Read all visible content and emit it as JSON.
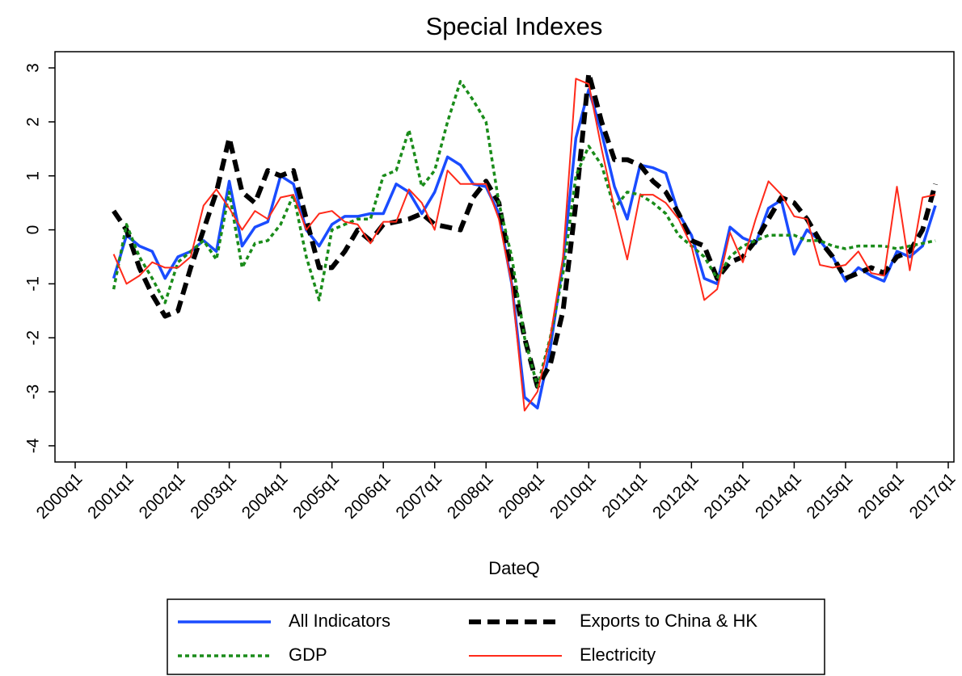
{
  "chart_data": {
    "type": "line",
    "title": "Special Indexes",
    "x_label": "DateQ",
    "categories": [
      "2000q4",
      "2001q1",
      "2001q2",
      "2001q3",
      "2001q4",
      "2002q1",
      "2002q2",
      "2002q3",
      "2002q4",
      "2003q1",
      "2003q2",
      "2003q3",
      "2003q4",
      "2004q1",
      "2004q2",
      "2004q3",
      "2004q4",
      "2005q1",
      "2005q2",
      "2005q3",
      "2005q4",
      "2006q1",
      "2006q2",
      "2006q3",
      "2006q4",
      "2007q1",
      "2007q2",
      "2007q3",
      "2007q4",
      "2008q1",
      "2008q2",
      "2008q3",
      "2008q4",
      "2009q1",
      "2009q2",
      "2009q3",
      "2009q4",
      "2010q1",
      "2010q2",
      "2010q3",
      "2010q4",
      "2011q1",
      "2011q2",
      "2011q3",
      "2011q4",
      "2012q1",
      "2012q2",
      "2012q3",
      "2012q4",
      "2013q1",
      "2013q2",
      "2013q3",
      "2013q4",
      "2014q1",
      "2014q2",
      "2014q3",
      "2014q4",
      "2015q1",
      "2015q2",
      "2015q3",
      "2015q4",
      "2016q1",
      "2016q2",
      "2016q3",
      "2016q4"
    ],
    "xlim": [
      "2000q1",
      "2017q1"
    ],
    "xticks": [
      "2000q1",
      "2001q1",
      "2002q1",
      "2003q1",
      "2004q1",
      "2005q1",
      "2006q1",
      "2007q1",
      "2008q1",
      "2009q1",
      "2010q1",
      "2011q1",
      "2012q1",
      "2013q1",
      "2014q1",
      "2015q1",
      "2016q1",
      "2017q1"
    ],
    "ylim": [
      -4.3,
      3.3
    ],
    "yticks": [
      -4,
      -3,
      -2,
      -1,
      0,
      1,
      2,
      3
    ],
    "series": [
      {
        "name": "All Indicators",
        "color": "#1a4cff",
        "style": "solid",
        "values": [
          -0.9,
          -0.1,
          -0.3,
          -0.4,
          -0.9,
          -0.5,
          -0.4,
          -0.2,
          -0.4,
          0.9,
          -0.3,
          0.05,
          0.15,
          1.0,
          0.85,
          0.0,
          -0.3,
          0.1,
          0.25,
          0.25,
          0.3,
          0.3,
          0.85,
          0.7,
          0.3,
          0.7,
          1.35,
          1.2,
          0.85,
          0.8,
          0.3,
          -1.0,
          -3.1,
          -3.3,
          -2.2,
          -0.6,
          1.7,
          2.6,
          1.8,
          0.8,
          0.2,
          1.2,
          1.15,
          1.05,
          0.3,
          -0.1,
          -0.9,
          -1.0,
          0.05,
          -0.15,
          -0.25,
          0.4,
          0.55,
          -0.45,
          0.0,
          -0.2,
          -0.5,
          -0.95,
          -0.7,
          -0.85,
          -0.95,
          -0.4,
          -0.5,
          -0.3,
          0.45
        ]
      },
      {
        "name": "Exports to China & HK",
        "color": "#000000",
        "style": "dashed",
        "values": [
          0.35,
          0.0,
          -0.7,
          -1.2,
          -1.6,
          -1.5,
          -0.7,
          0.0,
          0.7,
          1.7,
          0.7,
          0.5,
          1.1,
          1.0,
          1.1,
          0.2,
          -0.7,
          -0.7,
          -0.4,
          0.0,
          -0.2,
          0.1,
          0.15,
          0.2,
          0.3,
          0.1,
          0.05,
          0.0,
          0.6,
          0.9,
          0.5,
          -0.8,
          -2.0,
          -2.9,
          -2.5,
          -1.5,
          0.5,
          2.9,
          2.0,
          1.3,
          1.3,
          1.2,
          0.9,
          0.7,
          0.3,
          -0.2,
          -0.3,
          -0.9,
          -0.6,
          -0.5,
          -0.2,
          0.2,
          0.6,
          0.5,
          0.2,
          -0.2,
          -0.5,
          -0.9,
          -0.8,
          -0.7,
          -0.8,
          -0.5,
          -0.4,
          0.0,
          0.85
        ]
      },
      {
        "name": "GDP",
        "color": "#1a8c1a",
        "style": "dotted",
        "values": [
          -1.1,
          0.1,
          -0.5,
          -0.9,
          -1.35,
          -0.6,
          -0.4,
          -0.2,
          -0.55,
          0.7,
          -0.7,
          -0.25,
          -0.2,
          0.1,
          0.65,
          -0.5,
          -1.3,
          0.0,
          0.1,
          0.2,
          0.2,
          1.0,
          1.1,
          1.85,
          0.8,
          1.1,
          2.0,
          2.75,
          2.4,
          2.0,
          0.5,
          -0.5,
          -2.0,
          -2.9,
          -2.0,
          -0.8,
          1.0,
          1.55,
          1.2,
          0.4,
          0.7,
          0.65,
          0.5,
          0.3,
          -0.1,
          -0.3,
          -0.5,
          -0.9,
          -0.5,
          -0.3,
          -0.2,
          -0.1,
          -0.1,
          -0.1,
          -0.2,
          -0.2,
          -0.3,
          -0.35,
          -0.3,
          -0.3,
          -0.3,
          -0.35,
          -0.3,
          -0.25,
          -0.2
        ]
      },
      {
        "name": "Electricity",
        "color": "#ff2a1a",
        "style": "thin",
        "values": [
          -0.45,
          -1.0,
          -0.85,
          -0.6,
          -0.7,
          -0.7,
          -0.5,
          0.45,
          0.75,
          0.4,
          0.0,
          0.35,
          0.2,
          0.6,
          0.65,
          0.0,
          0.3,
          0.35,
          0.15,
          0.1,
          -0.25,
          0.15,
          0.15,
          0.75,
          0.5,
          0.0,
          1.1,
          0.85,
          0.85,
          0.85,
          0.2,
          -1.0,
          -3.35,
          -3.0,
          -2.0,
          -0.5,
          2.8,
          2.7,
          1.5,
          0.4,
          -0.55,
          0.65,
          0.65,
          0.5,
          0.2,
          -0.3,
          -1.3,
          -1.1,
          -0.05,
          -0.6,
          0.2,
          0.9,
          0.65,
          0.25,
          0.2,
          -0.65,
          -0.7,
          -0.65,
          -0.4,
          -0.8,
          -0.85,
          0.8,
          -0.75,
          0.6,
          0.65
        ]
      }
    ]
  }
}
